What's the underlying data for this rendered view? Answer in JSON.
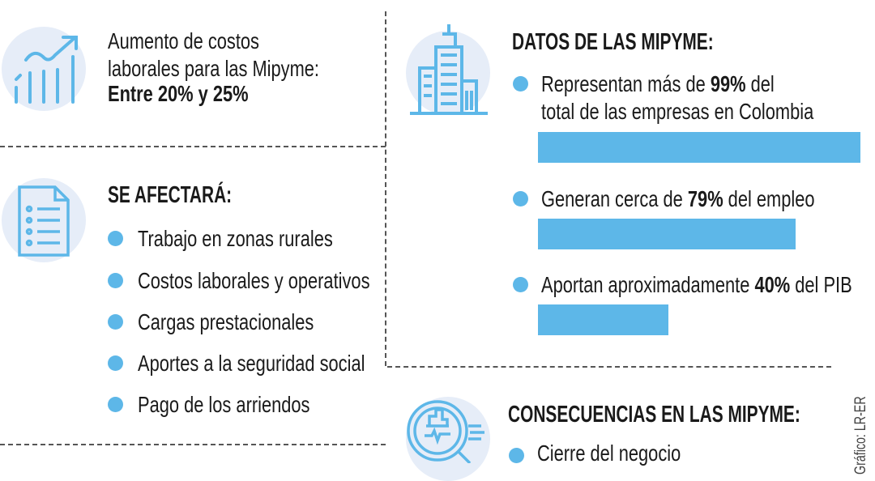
{
  "colors": {
    "accent": "#5db7e8",
    "icon_bg": "#e6edf8"
  },
  "cost_increase": {
    "icon": "growth-chart-icon",
    "line1": "Aumento de costos",
    "line2": "laborales para las Mipyme:",
    "value": "Entre 20% y 25%"
  },
  "affected": {
    "icon": "document-list-icon",
    "title": "SE AFECTARÁ:",
    "items": [
      "Trabajo en zonas rurales",
      "Costos laborales y operativos",
      "Cargas prestacionales",
      "Aportes a la seguridad social",
      "Pago de los arriendos"
    ]
  },
  "data": {
    "icon": "buildings-icon",
    "title": "DATOS DE LAS MIPYME:",
    "items": [
      {
        "pre": "Representan más de ",
        "value": "99%",
        "post": " del",
        "line2": "total de las empresas en Colombia",
        "percent": 99
      },
      {
        "pre": "Generan cerca de ",
        "value": "79%",
        "post": " del empleo",
        "percent": 79
      },
      {
        "pre": "Aportan aproximadamente ",
        "value": "40%",
        "post": " del PIB",
        "percent": 40
      }
    ]
  },
  "consequences": {
    "icon": "magnifier-analytics-icon",
    "title": "CONSECUENCIAS EN LAS MIPYME:",
    "items": [
      "Cierre del negocio"
    ]
  },
  "credit": "Gráfico: LR-ER"
}
